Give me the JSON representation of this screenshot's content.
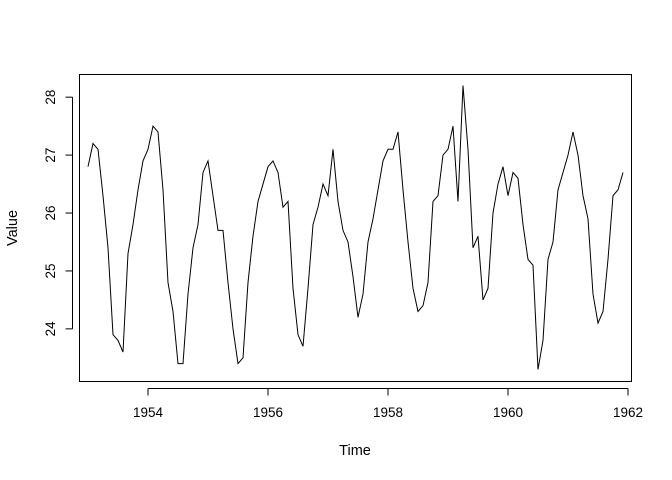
{
  "chart_data": {
    "type": "line",
    "title": "",
    "xlabel": "Time",
    "ylabel": "Value",
    "xlim": [
      1952.85,
      1962.05
    ],
    "ylim": [
      23.1,
      28.4
    ],
    "xticks": [
      1954,
      1956,
      1958,
      1960,
      1962
    ],
    "xtick_labels": [
      "1954",
      "1956",
      "1958",
      "1960",
      "1962"
    ],
    "yticks": [
      24,
      25,
      26,
      27,
      28
    ],
    "ytick_labels": [
      "24",
      "25",
      "26",
      "27",
      "28"
    ],
    "grid": false,
    "line_color": "#000000",
    "series": [
      {
        "start": 1953,
        "frequency": 12,
        "values": [
          26.8,
          27.2,
          27.1,
          26.3,
          25.4,
          23.9,
          23.8,
          23.6,
          25.3,
          25.8,
          26.4,
          26.9,
          27.1,
          27.5,
          27.4,
          26.4,
          24.8,
          24.3,
          23.4,
          23.4,
          24.6,
          25.4,
          25.8,
          26.7,
          26.9,
          26.3,
          25.7,
          25.7,
          24.8,
          24.0,
          23.4,
          23.5,
          24.8,
          25.6,
          26.2,
          26.5,
          26.8,
          26.9,
          26.7,
          26.1,
          26.2,
          24.7,
          23.9,
          23.7,
          24.7,
          25.8,
          26.1,
          26.5,
          26.3,
          27.1,
          26.2,
          25.7,
          25.5,
          24.9,
          24.2,
          24.6,
          25.5,
          25.9,
          26.4,
          26.9,
          27.1,
          27.1,
          27.4,
          26.4,
          25.5,
          24.7,
          24.3,
          24.4,
          24.8,
          26.2,
          26.3,
          27.0,
          27.1,
          27.5,
          26.2,
          28.2,
          27.1,
          25.4,
          25.6,
          24.5,
          24.7,
          26.0,
          26.5,
          26.8,
          26.3,
          26.7,
          26.6,
          25.8,
          25.2,
          25.1,
          23.3,
          23.8,
          25.2,
          25.5,
          26.4,
          26.7,
          27.0,
          27.4,
          27.0,
          26.3,
          25.9,
          24.6,
          24.1,
          24.3,
          25.2,
          26.3,
          26.4,
          26.7
        ]
      }
    ]
  }
}
